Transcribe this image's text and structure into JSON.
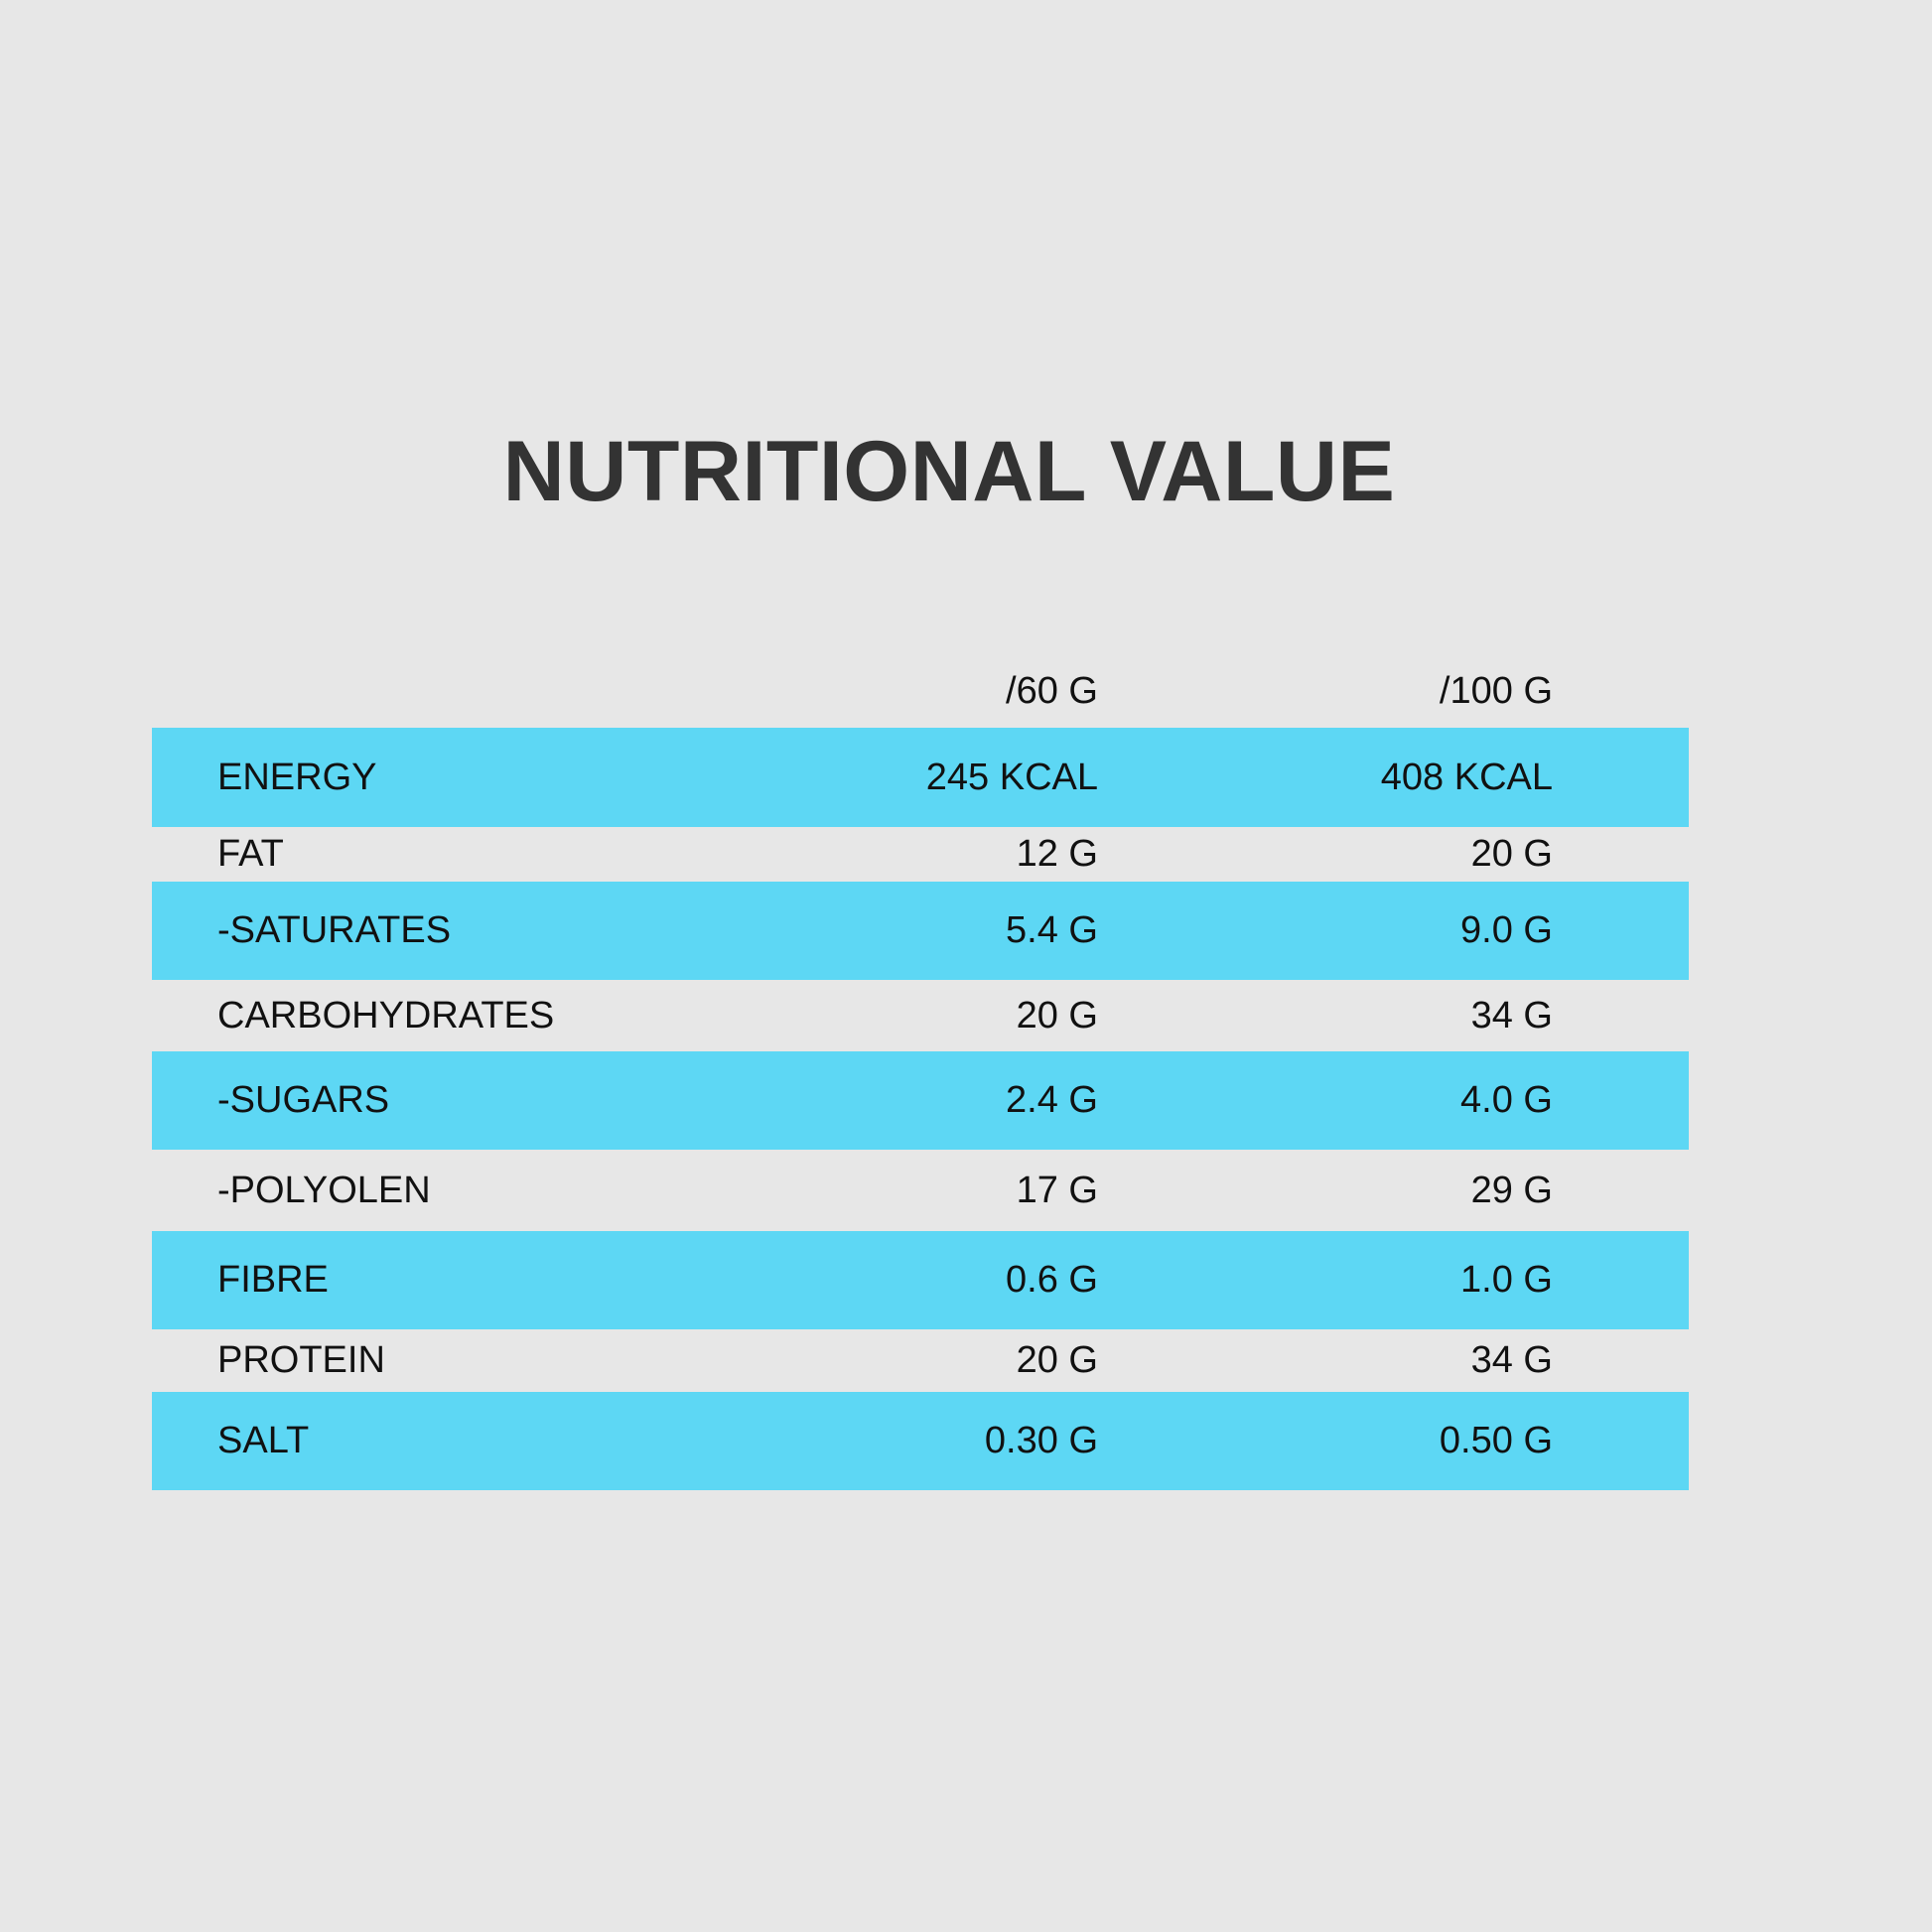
{
  "title": "NUTRITIONAL VALUE",
  "table": {
    "columns": [
      "",
      "/60 G",
      "/100 G"
    ],
    "rows": [
      {
        "name": "ENERGY",
        "per_60g": "245 KCAL",
        "per_100g": "408 KCAL",
        "highlight": true
      },
      {
        "name": "FAT",
        "per_60g": "12 G",
        "per_100g": "20 G",
        "highlight": false
      },
      {
        "name": "-SATURATES",
        "per_60g": "5.4 G",
        "per_100g": "9.0 G",
        "highlight": true
      },
      {
        "name": "CARBOHYDRATES",
        "per_60g": "20 G",
        "per_100g": "34 G",
        "highlight": false
      },
      {
        "name": "-SUGARS",
        "per_60g": "2.4 G",
        "per_100g": "4.0 G",
        "highlight": true
      },
      {
        "name": "-POLYOLEN",
        "per_60g": "17 G",
        "per_100g": "29 G",
        "highlight": false
      },
      {
        "name": "FIBRE",
        "per_60g": "0.6 G",
        "per_100g": "1.0 G",
        "highlight": true
      },
      {
        "name": "PROTEIN",
        "per_60g": "20 G",
        "per_100g": "34 G",
        "highlight": false
      },
      {
        "name": "SALT",
        "per_60g": "0.30 G",
        "per_100g": "0.50 G",
        "highlight": true
      }
    ]
  },
  "colors": {
    "background": "#e7e7e7",
    "row_highlight": "#5dd7f4",
    "title": "#333333",
    "text": "#111111"
  }
}
